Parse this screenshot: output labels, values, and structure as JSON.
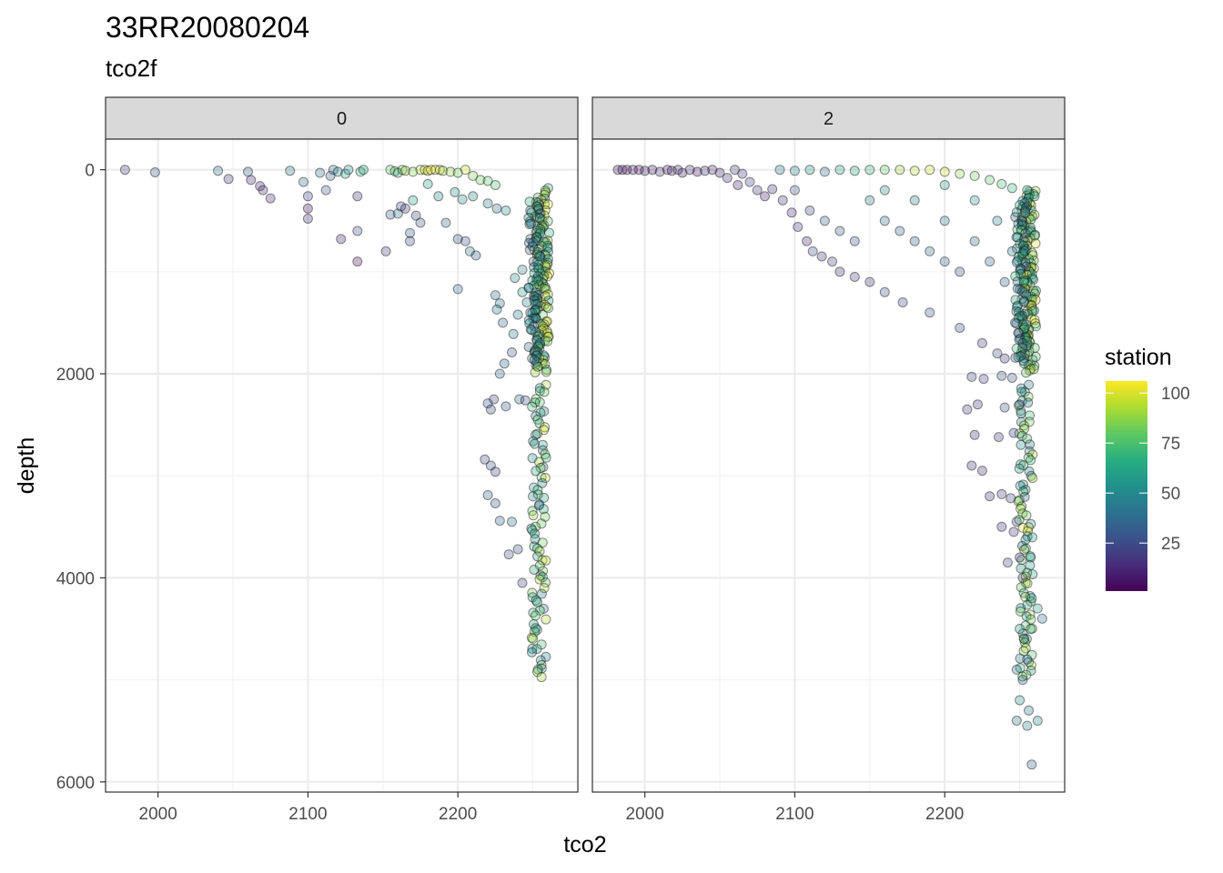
{
  "chart_data": {
    "type": "scatter",
    "title": "33RR20080204",
    "subtitle": "tco2f",
    "xlabel": "tco2",
    "ylabel": "depth",
    "xlim": [
      1965,
      2280
    ],
    "ylim": [
      6100,
      -300
    ],
    "y_reversed": true,
    "x_ticks": [
      2000,
      2100,
      2200
    ],
    "y_ticks": [
      0,
      2000,
      4000,
      6000
    ],
    "grid": true,
    "colorbar": {
      "title": "station",
      "palette": "viridis",
      "min": 1,
      "max": 106,
      "ticks": [
        25,
        50,
        75,
        100
      ]
    },
    "legend_position": "right",
    "facets": [
      {
        "label": "0",
        "points": [
          [
            1978,
            0,
            20
          ],
          [
            1998,
            25,
            30
          ],
          [
            2040,
            10,
            40
          ],
          [
            2047,
            90,
            18
          ],
          [
            2060,
            20,
            35
          ],
          [
            2062,
            100,
            12
          ],
          [
            2068,
            160,
            10
          ],
          [
            2070,
            200,
            15
          ],
          [
            2075,
            280,
            12
          ],
          [
            2088,
            10,
            42
          ],
          [
            2100,
            260,
            25
          ],
          [
            2100,
            380,
            8
          ],
          [
            2100,
            480,
            15
          ],
          [
            2115,
            60,
            30
          ],
          [
            2117,
            0,
            45
          ],
          [
            2120,
            20,
            50
          ],
          [
            2122,
            680,
            10
          ],
          [
            2125,
            40,
            60
          ],
          [
            2127,
            0,
            55
          ],
          [
            2133,
            600,
            28
          ],
          [
            2133,
            260,
            14
          ],
          [
            2133,
            900,
            5
          ],
          [
            2135,
            20,
            70
          ],
          [
            2137,
            0,
            62
          ],
          [
            2097,
            120,
            38
          ],
          [
            2108,
            30,
            40
          ],
          [
            2112,
            200,
            30
          ],
          [
            2152,
            800,
            20
          ],
          [
            2155,
            0,
            80
          ],
          [
            2158,
            15,
            74
          ],
          [
            2160,
            30,
            70
          ],
          [
            2163,
            0,
            82
          ],
          [
            2165,
            10,
            90
          ],
          [
            2170,
            20,
            85
          ],
          [
            2175,
            0,
            95
          ],
          [
            2178,
            0,
            98
          ],
          [
            2180,
            10,
            100
          ],
          [
            2182,
            0,
            104
          ],
          [
            2185,
            0,
            102
          ],
          [
            2188,
            0,
            96
          ],
          [
            2190,
            10,
            92
          ],
          [
            2195,
            20,
            88
          ],
          [
            2200,
            30,
            84
          ],
          [
            2205,
            0,
            99
          ],
          [
            2210,
            60,
            86
          ],
          [
            2215,
            100,
            80
          ],
          [
            2220,
            110,
            78
          ],
          [
            2225,
            150,
            74
          ],
          [
            2155,
            440,
            33
          ],
          [
            2160,
            430,
            40
          ],
          [
            2162,
            360,
            24
          ],
          [
            2165,
            380,
            18
          ],
          [
            2170,
            300,
            60
          ],
          [
            2172,
            450,
            22
          ],
          [
            2175,
            520,
            30
          ],
          [
            2180,
            140,
            58
          ],
          [
            2187,
            260,
            48
          ],
          [
            2192,
            520,
            38
          ],
          [
            2168,
            620,
            35
          ],
          [
            2168,
            700,
            27
          ],
          [
            2200,
            680,
            30
          ],
          [
            2205,
            700,
            28
          ],
          [
            2208,
            800,
            45
          ],
          [
            2212,
            840,
            32
          ],
          [
            2198,
            220,
            55
          ],
          [
            2203,
            290,
            52
          ],
          [
            2210,
            260,
            50
          ],
          [
            2220,
            330,
            45
          ],
          [
            2226,
            380,
            40
          ],
          [
            2232,
            400,
            54
          ],
          [
            2200,
            1170,
            40
          ],
          [
            2225,
            1230,
            38
          ],
          [
            2228,
            1310,
            42
          ],
          [
            2226,
            1370,
            45
          ],
          [
            2230,
            1500,
            36
          ],
          [
            2237,
            1610,
            45
          ],
          [
            2236,
            1790,
            30
          ],
          [
            2231,
            1900,
            34
          ],
          [
            2228,
            2000,
            38
          ],
          [
            2220,
            2290,
            30
          ],
          [
            2222,
            2350,
            25
          ],
          [
            2224,
            2250,
            22
          ],
          [
            2232,
            2320,
            28
          ],
          [
            2241,
            2250,
            34
          ],
          [
            2245,
            2260,
            32
          ],
          [
            2218,
            2840,
            25
          ],
          [
            2222,
            2900,
            30
          ],
          [
            2225,
            2960,
            20
          ],
          [
            2220,
            3190,
            34
          ],
          [
            2225,
            3270,
            30
          ],
          [
            2228,
            3440,
            35
          ],
          [
            2236,
            3450,
            40
          ],
          [
            2234,
            3770,
            28
          ],
          [
            2240,
            3720,
            25
          ],
          [
            2243,
            4050,
            22
          ],
          [
            2238,
            1060,
            52
          ],
          [
            2243,
            1200,
            58
          ],
          [
            2246,
            1300,
            45
          ],
          [
            2240,
            1420,
            44
          ],
          [
            2243,
            980,
            50
          ]
        ]
      },
      {
        "label": "2",
        "points": [
          [
            1982,
            0,
            5
          ],
          [
            1985,
            0,
            8
          ],
          [
            1988,
            0,
            6
          ],
          [
            1992,
            0,
            10
          ],
          [
            1996,
            0,
            4
          ],
          [
            2000,
            10,
            12
          ],
          [
            2005,
            0,
            7
          ],
          [
            2010,
            20,
            15
          ],
          [
            2015,
            0,
            9
          ],
          [
            2018,
            10,
            11
          ],
          [
            2022,
            0,
            14
          ],
          [
            2025,
            30,
            8
          ],
          [
            2030,
            0,
            12
          ],
          [
            2035,
            20,
            6
          ],
          [
            2040,
            10,
            16
          ],
          [
            2045,
            0,
            13
          ],
          [
            2050,
            30,
            10
          ],
          [
            2055,
            80,
            15
          ],
          [
            2060,
            0,
            20
          ],
          [
            2062,
            150,
            12
          ],
          [
            2065,
            40,
            18
          ],
          [
            2070,
            120,
            22
          ],
          [
            2075,
            200,
            14
          ],
          [
            2080,
            260,
            9
          ],
          [
            2085,
            190,
            16
          ],
          [
            2092,
            300,
            18
          ],
          [
            2098,
            420,
            15
          ],
          [
            2102,
            560,
            20
          ],
          [
            2108,
            700,
            12
          ],
          [
            2112,
            800,
            25
          ],
          [
            2118,
            850,
            18
          ],
          [
            2125,
            900,
            22
          ],
          [
            2130,
            1000,
            16
          ],
          [
            2140,
            1050,
            20
          ],
          [
            2150,
            1100,
            14
          ],
          [
            2160,
            1200,
            28
          ],
          [
            2172,
            1300,
            24
          ],
          [
            2190,
            1400,
            30
          ],
          [
            2210,
            1550,
            26
          ],
          [
            2225,
            1700,
            20
          ],
          [
            2235,
            1800,
            25
          ],
          [
            2240,
            1850,
            18
          ],
          [
            2090,
            0,
            45
          ],
          [
            2100,
            10,
            50
          ],
          [
            2110,
            0,
            55
          ],
          [
            2120,
            20,
            40
          ],
          [
            2130,
            0,
            60
          ],
          [
            2140,
            10,
            65
          ],
          [
            2150,
            0,
            70
          ],
          [
            2160,
            0,
            80
          ],
          [
            2170,
            0,
            90
          ],
          [
            2180,
            10,
            95
          ],
          [
            2190,
            0,
            100
          ],
          [
            2200,
            20,
            98
          ],
          [
            2210,
            40,
            88
          ],
          [
            2220,
            60,
            82
          ],
          [
            2230,
            100,
            78
          ],
          [
            2238,
            140,
            74
          ],
          [
            2245,
            180,
            70
          ],
          [
            2255,
            200,
            68
          ],
          [
            2260,
            260,
            65
          ],
          [
            2100,
            200,
            30
          ],
          [
            2110,
            400,
            26
          ],
          [
            2120,
            500,
            34
          ],
          [
            2130,
            600,
            30
          ],
          [
            2140,
            700,
            28
          ],
          [
            2150,
            300,
            44
          ],
          [
            2160,
            500,
            40
          ],
          [
            2170,
            600,
            36
          ],
          [
            2180,
            700,
            32
          ],
          [
            2190,
            800,
            34
          ],
          [
            2200,
            900,
            30
          ],
          [
            2210,
            1000,
            27
          ],
          [
            2160,
            200,
            50
          ],
          [
            2180,
            300,
            46
          ],
          [
            2200,
            500,
            42
          ],
          [
            2220,
            700,
            38
          ],
          [
            2230,
            900,
            36
          ],
          [
            2240,
            1100,
            32
          ],
          [
            2200,
            150,
            60
          ],
          [
            2220,
            300,
            55
          ],
          [
            2235,
            500,
            48
          ],
          [
            2245,
            800,
            45
          ],
          [
            2247,
            1500,
            30
          ],
          [
            2249,
            1600,
            24
          ],
          [
            2252,
            1700,
            35
          ],
          [
            2245,
            2040,
            30
          ],
          [
            2238,
            2020,
            28
          ],
          [
            2226,
            2050,
            20
          ],
          [
            2218,
            2030,
            22
          ],
          [
            2250,
            2300,
            24
          ],
          [
            2240,
            2330,
            28
          ],
          [
            2222,
            2300,
            18
          ],
          [
            2215,
            2350,
            20
          ],
          [
            2220,
            2600,
            15
          ],
          [
            2236,
            2620,
            18
          ],
          [
            2246,
            2580,
            22
          ],
          [
            2218,
            2900,
            16
          ],
          [
            2225,
            2950,
            14
          ],
          [
            2230,
            3200,
            18
          ],
          [
            2238,
            3180,
            20
          ],
          [
            2244,
            3220,
            24
          ],
          [
            2238,
            3500,
            16
          ],
          [
            2246,
            3550,
            18
          ],
          [
            2250,
            3800,
            14
          ],
          [
            2242,
            3850,
            22
          ],
          [
            2252,
            4000,
            26
          ],
          [
            2248,
            3450,
            28
          ],
          [
            2250,
            4500,
            60
          ],
          [
            2253,
            4600,
            50
          ],
          [
            2255,
            4800,
            40
          ],
          [
            2248,
            4900,
            45
          ],
          [
            2252,
            5000,
            38
          ],
          [
            2250,
            5200,
            55
          ],
          [
            2256,
            5300,
            44
          ],
          [
            2248,
            5400,
            40
          ],
          [
            2255,
            5450,
            48
          ],
          [
            2258,
            5830,
            35
          ],
          [
            2262,
            5400,
            50
          ],
          [
            2265,
            4400,
            42
          ],
          [
            2262,
            4300,
            60
          ],
          [
            2258,
            4200,
            55
          ]
        ]
      }
    ],
    "columns": [
      {
        "center": 2256,
        "spread": 5,
        "from": 200,
        "to": 2000,
        "count": 120,
        "sMin": 55,
        "sMax": 106
      },
      {
        "center": 2251,
        "spread": 4,
        "from": 300,
        "to": 1900,
        "count": 70,
        "sMin": 30,
        "sMax": 70
      },
      {
        "center": 2254,
        "spread": 5,
        "from": 2100,
        "to": 5000,
        "count": 90,
        "sMin": 40,
        "sMax": 100
      }
    ]
  }
}
